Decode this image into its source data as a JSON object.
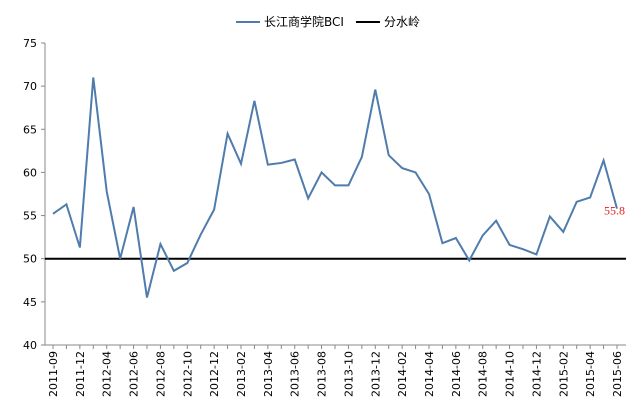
{
  "chart_data": {
    "type": "line",
    "categories": [
      "2011-09",
      null,
      "2011-12",
      null,
      "2012-04",
      null,
      "2012-06",
      null,
      "2012-08",
      null,
      "2012-10",
      null,
      "2012-12",
      null,
      "2013-02",
      null,
      "2013-04",
      null,
      "2013-06",
      null,
      "2013-08",
      null,
      "2013-10",
      null,
      "2013-12",
      null,
      "2014-02",
      null,
      "2014-04",
      null,
      "2014-06",
      null,
      "2014-08",
      null,
      "2014-10",
      null,
      "2014-12",
      null,
      "2015-02",
      null,
      "2015-04",
      null,
      "2015-06"
    ],
    "series": [
      {
        "name": "长江商学院BCI",
        "color": "#4f7cac",
        "values": [
          55.2,
          56.3,
          51.3,
          71.0,
          57.8,
          50.0,
          56.0,
          45.5,
          51.7,
          48.6,
          49.5,
          52.8,
          55.7,
          64.5,
          61.0,
          68.3,
          60.9,
          61.1,
          61.5,
          57.0,
          60.0,
          58.5,
          58.5,
          61.8,
          69.6,
          62.0,
          60.5,
          60.0,
          57.5,
          51.8,
          52.4,
          49.8,
          52.7,
          54.4,
          51.6,
          51.1,
          50.5,
          54.9,
          53.1,
          56.6,
          57.1,
          61.4,
          55.8
        ],
        "value_labels": [
          null,
          null,
          null,
          null,
          null,
          null,
          null,
          null,
          null,
          null,
          null,
          null,
          null,
          null,
          null,
          null,
          null,
          null,
          null,
          null,
          null,
          null,
          null,
          null,
          null,
          null,
          null,
          null,
          null,
          null,
          null,
          null,
          null,
          null,
          null,
          null,
          null,
          null,
          null,
          null,
          null,
          null,
          "55.8"
        ],
        "value_label_color": "#e02020"
      }
    ],
    "reference_line": {
      "name": "分水岭",
      "value": 50,
      "color": "#000000"
    },
    "ylim": [
      40,
      75
    ],
    "yticks": [
      40,
      45,
      50,
      55,
      60,
      65,
      70,
      75
    ],
    "grid": false,
    "legend": "top"
  }
}
